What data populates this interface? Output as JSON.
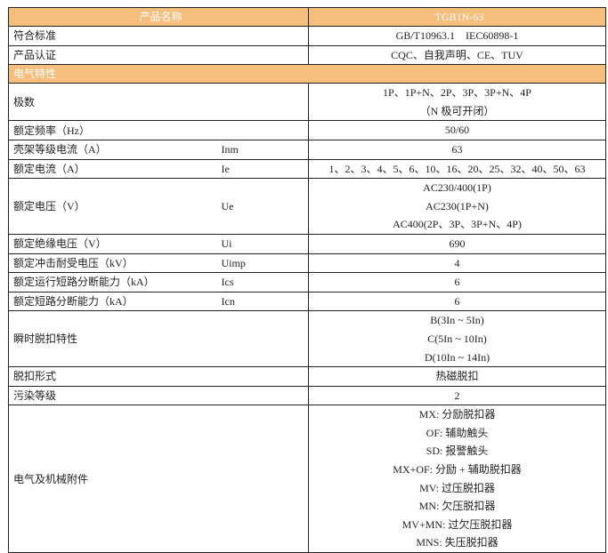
{
  "header": {
    "name_label": "产品名称",
    "name_value": "TGB1N-63"
  },
  "rows_top": [
    {
      "label": "符合标准",
      "value": [
        "GB/T10963.1　IEC60898-1"
      ]
    },
    {
      "label": "产品认证",
      "value": [
        "CQC、自我声明、CE、TUV"
      ]
    }
  ],
  "section_title": "电气特性",
  "rows": [
    {
      "label": "极数",
      "symbol": "",
      "value": [
        "1P、1P+N、2P、3P、3P+N、4P",
        "（N 极可开闭）"
      ]
    },
    {
      "label": "额定频率（Hz）",
      "symbol": "",
      "value": [
        "50/60"
      ]
    },
    {
      "label": "壳架等级电流（A）",
      "symbol": "Inm",
      "value": [
        "63"
      ]
    },
    {
      "label": "额定电流（A）",
      "symbol": "Ie",
      "value": [
        "1、2、3、4、5、6、10、16、20、25、32、40、50、63"
      ]
    },
    {
      "label": "额定电压（V）",
      "symbol": "Ue",
      "value": [
        "AC230/400(1P)",
        "AC230(1P+N)",
        "AC400(2P、3P、3P+N、4P)"
      ]
    },
    {
      "label": "额定绝缘电压（V）",
      "symbol": "Ui",
      "value": [
        "690"
      ]
    },
    {
      "label": "额定冲击耐受电压（kV）",
      "symbol": "Uimp",
      "value": [
        "4"
      ]
    },
    {
      "label": "额定运行短路分断能力（kA）",
      "symbol": "Ics",
      "value": [
        "6"
      ]
    },
    {
      "label": "额定短路分断能力（kA）",
      "symbol": "Icn",
      "value": [
        "6"
      ]
    },
    {
      "label": "瞬时脱扣特性",
      "symbol": "",
      "value": [
        "B(3In ~ 5In)",
        "C(5In ~ 10In)",
        "D(10In ~ 14In)"
      ]
    },
    {
      "label": "脱扣形式",
      "symbol": "",
      "value": [
        "热磁脱扣"
      ]
    },
    {
      "label": "污染等级",
      "symbol": "",
      "value": [
        "2"
      ]
    },
    {
      "label": "电气及机械附件",
      "symbol": "",
      "value": [
        "MX: 分励脱扣器",
        "OF: 辅助触头",
        "SD: 报警触头",
        "MX+OF: 分励 + 辅助脱扣器",
        "MV: 过压脱扣器",
        "MN: 欠压脱扣器",
        "MV+MN: 过欠压脱扣器",
        "MNS: 失压脱扣器"
      ]
    }
  ],
  "colors": {
    "header_bg": "#F5BE7D",
    "header_text": "#FFFFFF",
    "border": "#222222"
  }
}
